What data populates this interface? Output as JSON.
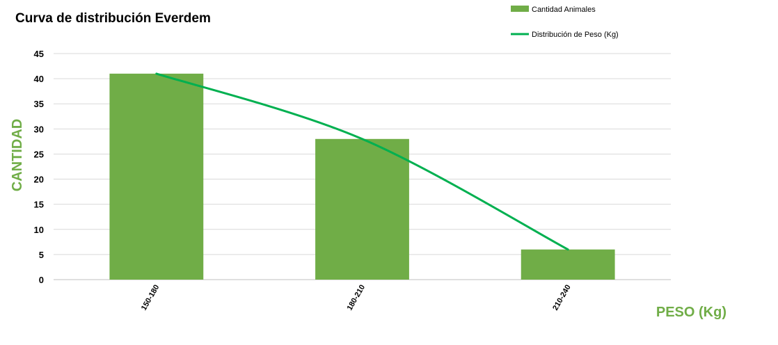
{
  "chart_data": {
    "type": "bar",
    "title": "Curva de distribución Everdem",
    "xlabel": "PESO (Kg)",
    "ylabel": "CANTIDAD",
    "categories": [
      "150-180",
      "180-210",
      "210-240"
    ],
    "series": [
      {
        "name": "Cantidad Animales",
        "type": "bar",
        "values": [
          41,
          28,
          6
        ]
      },
      {
        "name": "Distribución de Peso (Kg)",
        "type": "line",
        "smooth": true,
        "values": [
          41,
          28,
          6
        ]
      }
    ],
    "ylim": [
      0,
      45
    ],
    "yticks": [
      0,
      5,
      10,
      15,
      20,
      25,
      30,
      35,
      40,
      45
    ],
    "grid": true,
    "legend": "top-right",
    "colors": {
      "bar": "#70AD47",
      "line": "#00B050",
      "axis_title": "#70AD47",
      "grid": "#D9D9D9"
    }
  }
}
